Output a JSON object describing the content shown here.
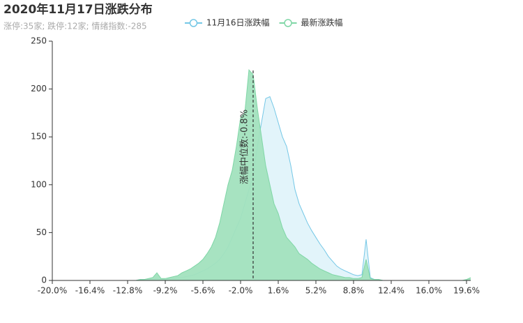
{
  "chart_data": {
    "type": "area",
    "title": "2020年11月17日涨跌分布",
    "subtitle": "涨停:35家; 跌停:12家; 情绪指数:-285",
    "x": [
      -20,
      -19.6,
      -19.2,
      -18.8,
      -18.4,
      -18,
      -17.6,
      -17.2,
      -16.8,
      -16.4,
      -16,
      -15.6,
      -15.2,
      -14.8,
      -14.4,
      -14,
      -13.6,
      -13.2,
      -12.8,
      -12.4,
      -12,
      -11.6,
      -11.2,
      -10.8,
      -10.4,
      -10,
      -9.6,
      -9.2,
      -8.8,
      -8.4,
      -8,
      -7.6,
      -7.2,
      -6.8,
      -6.4,
      -6,
      -5.6,
      -5.2,
      -4.8,
      -4.4,
      -4,
      -3.6,
      -3.2,
      -2.8,
      -2.4,
      -2,
      -1.6,
      -1.2,
      -0.8,
      -0.4,
      0,
      0.4,
      0.8,
      1.2,
      1.6,
      2,
      2.4,
      2.8,
      3.2,
      3.6,
      4,
      4.4,
      4.8,
      5.2,
      5.6,
      6,
      6.4,
      6.8,
      7.2,
      7.6,
      8,
      8.4,
      8.8,
      9.2,
      9.6,
      10,
      10.4,
      10.8,
      11.2,
      11.6,
      12,
      12.4,
      12.8,
      13.2,
      13.6,
      14,
      14.4,
      14.8,
      15.2,
      15.6,
      16,
      16.4,
      16.8,
      17.2,
      17.6,
      18,
      18.4,
      18.8,
      19.2,
      19.6,
      20
    ],
    "series": [
      {
        "name": "11月16日涨跌幅",
        "color": "#74c7e6",
        "fill": "#dff3fa",
        "values": [
          0,
          0,
          0,
          0,
          0,
          0,
          0,
          0,
          0,
          0,
          0,
          0,
          0,
          0,
          0,
          0,
          0,
          0,
          0,
          0,
          0,
          1,
          1,
          1,
          1,
          2,
          1,
          1,
          2,
          2,
          3,
          3,
          4,
          5,
          6,
          8,
          10,
          12,
          15,
          18,
          22,
          28,
          35,
          45,
          55,
          65,
          80,
          95,
          110,
          140,
          165,
          190,
          192,
          180,
          165,
          150,
          140,
          120,
          95,
          80,
          70,
          60,
          52,
          45,
          38,
          32,
          25,
          20,
          15,
          12,
          10,
          8,
          6,
          5,
          6,
          43,
          3,
          1,
          1,
          0,
          0,
          0,
          0,
          0,
          0,
          0,
          0,
          0,
          0,
          0,
          0,
          0,
          0,
          0,
          0,
          0,
          0,
          0,
          0,
          0,
          0
        ]
      },
      {
        "name": "最新涨跌幅",
        "color": "#7fd6a6",
        "fill": "#a2e1be",
        "values": [
          0,
          0,
          0,
          0,
          0,
          0,
          0,
          0,
          0,
          0,
          0,
          0,
          0,
          0,
          0,
          0,
          0,
          0,
          0,
          0,
          0,
          1,
          1,
          2,
          3,
          8,
          2,
          2,
          3,
          4,
          5,
          8,
          10,
          12,
          15,
          18,
          22,
          28,
          35,
          45,
          60,
          80,
          100,
          115,
          140,
          170,
          175,
          220,
          215,
          180,
          150,
          120,
          100,
          80,
          70,
          55,
          45,
          40,
          35,
          28,
          25,
          22,
          18,
          15,
          12,
          10,
          8,
          6,
          5,
          4,
          3,
          3,
          2,
          2,
          3,
          22,
          2,
          1,
          1,
          0,
          0,
          0,
          0,
          0,
          0,
          0,
          0,
          0,
          0,
          0,
          0,
          0,
          0,
          0,
          0,
          0,
          0,
          0,
          0,
          1,
          3
        ]
      }
    ],
    "median": {
      "value": -0.8,
      "label": "涨幅中位数:-0.8%"
    },
    "xlim": [
      -20,
      20
    ],
    "xticks": [
      {
        "value": -20,
        "label": "-20.0%"
      },
      {
        "value": -16.4,
        "label": "-16.4%"
      },
      {
        "value": -12.8,
        "label": "-12.8%"
      },
      {
        "value": -9.2,
        "label": "-9.2%"
      },
      {
        "value": -5.6,
        "label": "-5.6%"
      },
      {
        "value": -2,
        "label": "-2.0%"
      },
      {
        "value": 1.6,
        "label": "1.6%"
      },
      {
        "value": 5.2,
        "label": "5.2%"
      },
      {
        "value": 8.8,
        "label": "8.8%"
      },
      {
        "value": 12.4,
        "label": "12.4%"
      },
      {
        "value": 16,
        "label": "16.0%"
      },
      {
        "value": 19.6,
        "label": "19.6%"
      }
    ],
    "ylim": [
      0,
      250
    ],
    "yticks": [
      0,
      50,
      100,
      150,
      200,
      250
    ]
  }
}
